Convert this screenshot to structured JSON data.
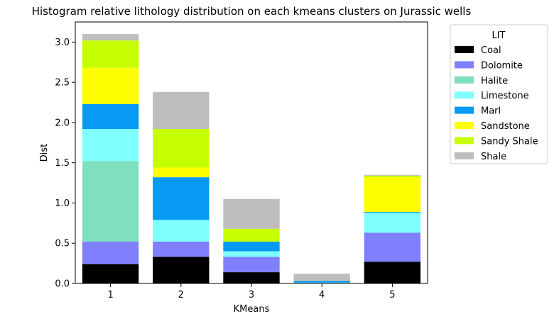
{
  "chart_data": {
    "type": "bar",
    "stacked": true,
    "title": "Histogram relative lithology distribution on each kmeans clusters on Jurassic wells",
    "xlabel": "KMeans",
    "ylabel": "Dist",
    "ylim": [
      0,
      3.25
    ],
    "yticks": [
      "0.0",
      "0.5",
      "1.0",
      "1.5",
      "2.0",
      "2.5",
      "3.0"
    ],
    "categories": [
      "1",
      "2",
      "3",
      "4",
      "5"
    ],
    "grid": false,
    "legend": {
      "title": "LIT",
      "placement": "outside-right"
    },
    "series": [
      {
        "name": "Coal",
        "color": "#000000",
        "values": [
          0.24,
          0.33,
          0.14,
          0.0,
          0.27
        ]
      },
      {
        "name": "Dolomite",
        "color": "#8080ff",
        "values": [
          0.28,
          0.19,
          0.19,
          0.0,
          0.36
        ]
      },
      {
        "name": "Halite",
        "color": "#80dfbf",
        "values": [
          1.0,
          0.0,
          0.0,
          0.0,
          0.0
        ]
      },
      {
        "name": "Limestone",
        "color": "#80ffff",
        "values": [
          0.4,
          0.27,
          0.07,
          0.01,
          0.25
        ]
      },
      {
        "name": "Marl",
        "color": "#069af3",
        "values": [
          0.31,
          0.53,
          0.12,
          0.02,
          0.01
        ]
      },
      {
        "name": "Sandstone",
        "color": "#ffff00",
        "values": [
          0.45,
          0.12,
          0.0,
          0.0,
          0.43
        ]
      },
      {
        "name": "Sandy Shale",
        "color": "#c5ff00",
        "values": [
          0.34,
          0.48,
          0.16,
          0.0,
          0.02
        ]
      },
      {
        "name": "Shale",
        "color": "#bebebe",
        "values": [
          0.08,
          0.46,
          0.37,
          0.09,
          0.01
        ]
      }
    ]
  }
}
